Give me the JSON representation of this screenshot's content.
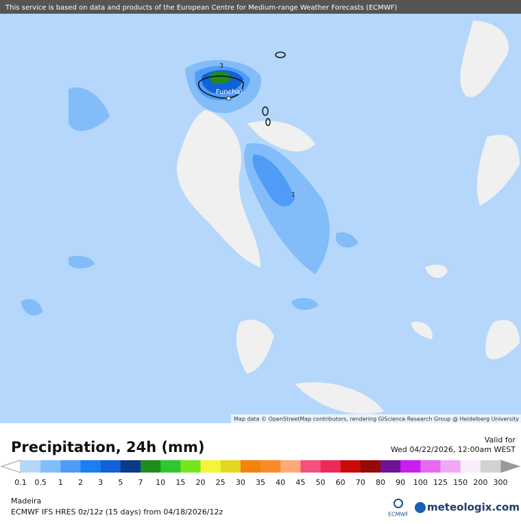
{
  "header": {
    "notice": "This service is based on data and products of the European Centre for Medium-range Weather Forecasts (ECMWF)"
  },
  "map": {
    "place_label": "Funchal",
    "contour_labels": [
      "3",
      "1"
    ],
    "attribution": "Map data © OpenStreetMap contributors, rendering GIScience Research Group @ Heidelberg University"
  },
  "footer": {
    "title": "Precipitation, 24h (mm)",
    "valid_label": "Valid for",
    "valid_time": "Wed 04/22/2026, 12:00am WEST",
    "region": "Madeira",
    "model": "ECMWF IFS HRES 0z/12z (15 days)  from  04/18/2026/12z",
    "ecmwf_logo": "ECMWF",
    "brand": "meteologix.com"
  },
  "legend": {
    "labels": [
      0.1,
      0.5,
      1,
      2,
      3,
      5,
      7,
      10,
      15,
      20,
      25,
      30,
      35,
      40,
      45,
      50,
      60,
      70,
      80,
      90,
      100,
      125,
      150,
      200,
      300
    ],
    "colors": [
      "#b4d7fb",
      "#82bcf9",
      "#4e9cf7",
      "#1a7ef5",
      "#1162d6",
      "#0b3a8c",
      "#1e8c1e",
      "#2ec82e",
      "#73e61e",
      "#f5f53c",
      "#e6d71e",
      "#f5820a",
      "#fa8c28",
      "#fcaa78",
      "#f5507d",
      "#f0285a",
      "#c80a0a",
      "#960a0a",
      "#6e1496",
      "#c81ef0",
      "#e669f0",
      "#f0aaf5",
      "#faeefa",
      "#d2d2d2"
    ]
  }
}
